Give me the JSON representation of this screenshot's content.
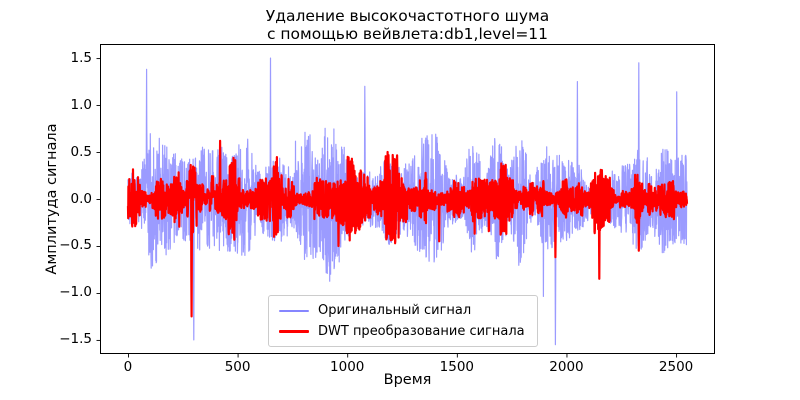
{
  "figure": {
    "title_line1": "Удаление высокочастотного шума",
    "title_line2": "с помощью вейвлета:db1,level=11",
    "xlabel": "Время",
    "ylabel": "Амплитуда сигнала"
  },
  "chart_data": {
    "type": "line",
    "title": "Удаление высокочастотного шума с помощью вейвлета:db1,level=11",
    "xlabel": "Время",
    "ylabel": "Амплитуда сигнала",
    "xlim": [
      -127.5,
      2677.5
    ],
    "ylim": [
      -1.65,
      1.65
    ],
    "x_range_data": [
      0,
      2550
    ],
    "n_points": 2550,
    "grid": false,
    "legend_position": "lower center (inside axes)",
    "xticks": [
      0,
      500,
      1000,
      1500,
      2000,
      2500
    ],
    "xtick_labels": [
      "0",
      "500",
      "1000",
      "1500",
      "2000",
      "2500"
    ],
    "yticks": [
      -1.5,
      -1.0,
      -0.5,
      0.0,
      0.5,
      1.0,
      1.5
    ],
    "ytick_labels": [
      "−1.5",
      "−1.0",
      "−0.5",
      "0.0",
      "0.5",
      "1.0",
      "1.5"
    ],
    "series": [
      {
        "name": "Оригинальный сигнал",
        "color": "#2222ff",
        "opacity": 0.45,
        "line_width": 1.2,
        "description": "dense high-frequency noisy signal, typical band ±0.3…±0.9, extreme spikes to ±1.5",
        "synthesis": {
          "seed": 1337,
          "envelope_anchors": 48,
          "base_amp": 0.95,
          "spike_prob": 0.004,
          "clip": 1.55,
          "spikes": [
            {
              "x": 85,
              "v": 1.38
            },
            {
              "x": 300,
              "v": -1.5
            },
            {
              "x": 650,
              "v": 1.5
            },
            {
              "x": 1080,
              "v": 1.2
            },
            {
              "x": 1950,
              "v": -1.55
            },
            {
              "x": 2050,
              "v": 1.25
            },
            {
              "x": 2330,
              "v": 1.45
            }
          ]
        }
      },
      {
        "name": "DWT преобразование сигнала",
        "color": "#ff0000",
        "opacity": 1,
        "line_width": 2.2,
        "description": "denoised (DWT db1, level 11) signal, typical band ±0.1…±0.3, bursts to ±0.6, few spikes to −1.25",
        "synthesis": {
          "seed": 777,
          "envelope_anchors": 40,
          "burst_anchors": 80,
          "base_amp": 0.3,
          "clip": 1.3,
          "spikes": [
            {
              "x": 290,
              "v": -1.25
            },
            {
              "x": 420,
              "v": 0.62
            },
            {
              "x": 960,
              "v": -0.5
            },
            {
              "x": 1420,
              "v": -0.45
            },
            {
              "x": 1950,
              "v": -0.62
            },
            {
              "x": 2150,
              "v": -0.85
            },
            {
              "x": 2330,
              "v": -0.55
            }
          ]
        }
      }
    ]
  }
}
